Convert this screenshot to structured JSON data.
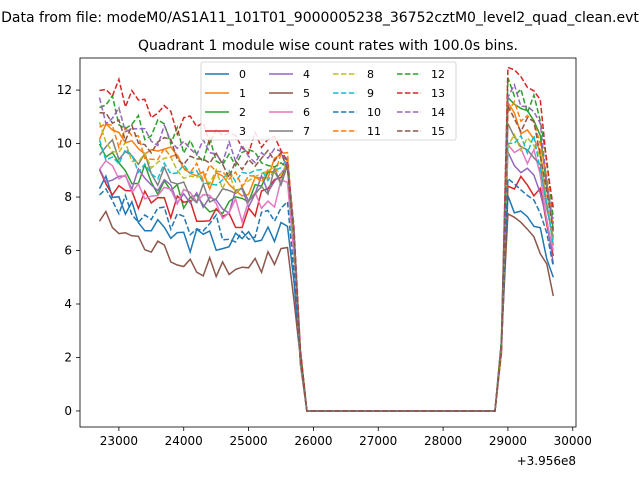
{
  "chart_data": {
    "type": "line",
    "suptitle": "Data from file: modeM0/AS1A11_101T01_9000005238_36752cztM0_level2_quad_clean.evt",
    "title": "Quadrant 1 module wise count rates with 100.0s bins.",
    "xlabel": "",
    "ylabel": "",
    "offset_text": "+3.956e8",
    "xlim": [
      22400,
      30050
    ],
    "ylim": [
      -0.6,
      13.2
    ],
    "xticks": [
      23000,
      24000,
      25000,
      26000,
      27000,
      28000,
      29000,
      30000
    ],
    "xtick_labels": [
      "23000",
      "24000",
      "25000",
      "26000",
      "27000",
      "28000",
      "29000",
      "30000"
    ],
    "yticks": [
      0,
      2,
      4,
      6,
      8,
      10,
      12
    ],
    "ytick_labels": [
      "0",
      "2",
      "4",
      "6",
      "8",
      "10",
      "12"
    ],
    "gap": {
      "drop_start": 25700,
      "zero_start": 25900,
      "zero_end": 28800,
      "rise_end": 29000,
      "last_x": 29700
    },
    "series": [
      {
        "name": "0",
        "style": "solid",
        "color": "#1f77b4",
        "seg1": [
          8.6,
          6.8,
          6.4,
          6.3,
          6.9
        ],
        "seg2": [
          8.0,
          7.5,
          7.2,
          5.0
        ]
      },
      {
        "name": "1",
        "style": "solid",
        "color": "#ff7f0e",
        "seg1": [
          10.6,
          9.9,
          9.0,
          8.3,
          9.3
        ],
        "seg2": [
          11.8,
          10.5,
          10.2,
          6.2
        ]
      },
      {
        "name": "2",
        "style": "solid",
        "color": "#2ca02c",
        "seg1": [
          9.6,
          8.7,
          7.8,
          7.6,
          9.1
        ],
        "seg2": [
          11.5,
          11.0,
          10.6,
          6.8
        ]
      },
      {
        "name": "3",
        "style": "solid",
        "color": "#d62728",
        "seg1": [
          8.8,
          7.9,
          7.4,
          6.9,
          9.2
        ],
        "seg2": [
          8.5,
          8.8,
          8.3,
          5.8
        ]
      },
      {
        "name": "4",
        "style": "solid",
        "color": "#9467bd",
        "seg1": [
          9.0,
          8.6,
          8.0,
          7.8,
          9.0
        ],
        "seg2": [
          9.3,
          9.1,
          8.9,
          5.5
        ]
      },
      {
        "name": "5",
        "style": "solid",
        "color": "#8c564b",
        "seg1": [
          7.2,
          6.1,
          5.6,
          5.3,
          5.9
        ],
        "seg2": [
          7.3,
          6.6,
          6.3,
          4.3
        ]
      },
      {
        "name": "6",
        "style": "solid",
        "color": "#e377c2",
        "seg1": [
          9.3,
          8.2,
          7.8,
          7.4,
          8.3
        ],
        "seg2": [
          10.2,
          9.6,
          9.3,
          6.0
        ]
      },
      {
        "name": "7",
        "style": "solid",
        "color": "#7f7f7f",
        "seg1": [
          10.0,
          9.1,
          8.3,
          8.1,
          8.9
        ],
        "seg2": [
          10.5,
          9.9,
          9.5,
          6.5
        ]
      },
      {
        "name": "8",
        "style": "dashed",
        "color": "#bcbd22",
        "seg1": [
          10.4,
          9.3,
          8.8,
          8.6,
          9.0
        ],
        "seg2": [
          10.0,
          10.1,
          9.7,
          6.4
        ]
      },
      {
        "name": "9",
        "style": "dashed",
        "color": "#17becf",
        "seg1": [
          9.9,
          9.1,
          8.6,
          8.5,
          9.1
        ],
        "seg2": [
          10.4,
          10.0,
          9.9,
          6.2
        ]
      },
      {
        "name": "10",
        "style": "dashed",
        "color": "#1f77b4",
        "seg1": [
          8.0,
          7.4,
          7.0,
          6.7,
          7.4
        ],
        "seg2": [
          8.6,
          8.2,
          8.0,
          5.4
        ]
      },
      {
        "name": "11",
        "style": "dashed",
        "color": "#ff7f0e",
        "seg1": [
          10.7,
          9.7,
          9.0,
          8.8,
          9.2
        ],
        "seg2": [
          11.4,
          11.0,
          10.6,
          6.9
        ]
      },
      {
        "name": "12",
        "style": "dashed",
        "color": "#2ca02c",
        "seg1": [
          11.6,
          10.6,
          9.9,
          9.5,
          9.6
        ],
        "seg2": [
          12.2,
          11.6,
          11.4,
          7.2
        ]
      },
      {
        "name": "13",
        "style": "dashed",
        "color": "#d62728",
        "seg1": [
          12.4,
          11.3,
          10.5,
          10.1,
          9.8
        ],
        "seg2": [
          12.9,
          12.3,
          12.1,
          7.6
        ]
      },
      {
        "name": "14",
        "style": "dashed",
        "color": "#9467bd",
        "seg1": [
          11.3,
          10.4,
          10.0,
          9.6,
          9.6
        ],
        "seg2": [
          12.1,
          11.4,
          11.0,
          7.0
        ]
      },
      {
        "name": "15",
        "style": "dashed",
        "color": "#8c564b",
        "seg1": [
          10.9,
          10.0,
          9.4,
          9.1,
          9.4
        ],
        "seg2": [
          11.3,
          10.7,
          10.4,
          6.7
        ]
      }
    ]
  }
}
